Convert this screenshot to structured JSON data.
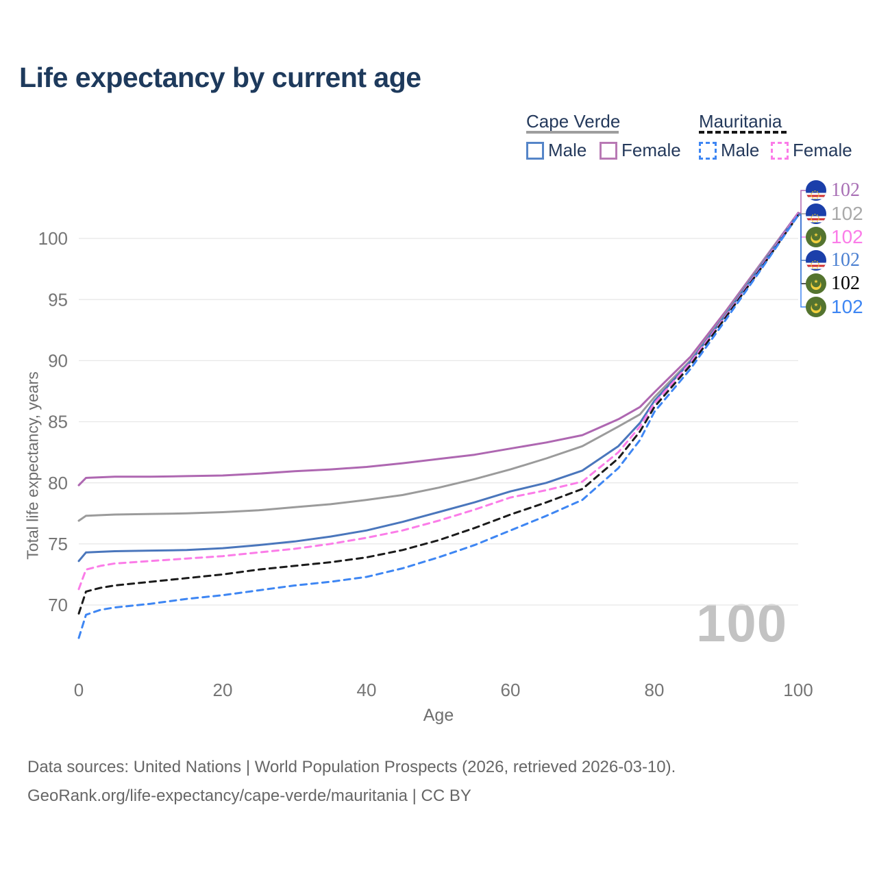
{
  "title": "Life expectancy by current age",
  "watermark": "100",
  "legend": {
    "groups": [
      {
        "label": "Cape Verde",
        "line_style": "solid",
        "line_color": "#9e9e9e",
        "items": [
          {
            "label": "Male",
            "box_color": "#5585c8",
            "dashed": false
          },
          {
            "label": "Female",
            "box_color": "#b879b4",
            "dashed": false
          }
        ]
      },
      {
        "label": "Mauritania",
        "line_style": "dashed",
        "line_color": "#161616",
        "items": [
          {
            "label": "Male",
            "box_color": "#3e86f3",
            "dashed": true
          },
          {
            "label": "Female",
            "box_color": "#fb7ce8",
            "dashed": true
          }
        ]
      }
    ]
  },
  "chart_data": {
    "type": "line",
    "title": "Life expectancy by current age",
    "xlabel": "Age",
    "ylabel": "Total life expectancy, years",
    "xlim": [
      0,
      100
    ],
    "ylim": [
      66.5,
      103
    ],
    "xticks": [
      0,
      20,
      40,
      60,
      80,
      100
    ],
    "yticks": [
      70,
      75,
      80,
      85,
      90,
      95,
      100
    ],
    "grid": "horizontal",
    "legend_position": "top-right",
    "series": [
      {
        "id": "cv_female",
        "label": "Cape Verde — Female",
        "country": "Cape Verde",
        "sex": "Female",
        "color": "#ae67b1",
        "dash": false,
        "points": [
          [
            0,
            79.8
          ],
          [
            1,
            80.4
          ],
          [
            3,
            80.45
          ],
          [
            5,
            80.5
          ],
          [
            10,
            80.5
          ],
          [
            15,
            80.55
          ],
          [
            20,
            80.6
          ],
          [
            25,
            80.75
          ],
          [
            30,
            80.95
          ],
          [
            35,
            81.1
          ],
          [
            40,
            81.3
          ],
          [
            45,
            81.6
          ],
          [
            50,
            81.95
          ],
          [
            55,
            82.3
          ],
          [
            60,
            82.8
          ],
          [
            65,
            83.3
          ],
          [
            70,
            83.9
          ],
          [
            75,
            85.2
          ],
          [
            78,
            86.2
          ],
          [
            80,
            87.4
          ],
          [
            85,
            90.3
          ],
          [
            90,
            94.1
          ],
          [
            95,
            98.1
          ],
          [
            100,
            102.1
          ]
        ]
      },
      {
        "id": "cv_both",
        "label": "Cape Verde — Both sexes",
        "country": "Cape Verde",
        "sex": "Both",
        "color": "#9b9b9b",
        "dash": false,
        "points": [
          [
            0,
            76.9
          ],
          [
            1,
            77.3
          ],
          [
            3,
            77.35
          ],
          [
            5,
            77.4
          ],
          [
            10,
            77.45
          ],
          [
            15,
            77.5
          ],
          [
            20,
            77.6
          ],
          [
            25,
            77.75
          ],
          [
            30,
            78.0
          ],
          [
            35,
            78.25
          ],
          [
            40,
            78.6
          ],
          [
            45,
            79.0
          ],
          [
            50,
            79.6
          ],
          [
            55,
            80.3
          ],
          [
            60,
            81.1
          ],
          [
            65,
            82.0
          ],
          [
            70,
            83.0
          ],
          [
            75,
            84.6
          ],
          [
            78,
            85.6
          ],
          [
            80,
            87.0
          ],
          [
            85,
            90.0
          ],
          [
            90,
            93.9
          ],
          [
            95,
            98.0
          ],
          [
            100,
            102.0
          ]
        ]
      },
      {
        "id": "cv_male",
        "label": "Cape Verde — Male",
        "country": "Cape Verde",
        "sex": "Male",
        "color": "#4a76bc",
        "dash": false,
        "points": [
          [
            0,
            73.6
          ],
          [
            1,
            74.3
          ],
          [
            3,
            74.35
          ],
          [
            5,
            74.4
          ],
          [
            10,
            74.45
          ],
          [
            15,
            74.5
          ],
          [
            20,
            74.65
          ],
          [
            25,
            74.9
          ],
          [
            30,
            75.2
          ],
          [
            35,
            75.6
          ],
          [
            40,
            76.1
          ],
          [
            45,
            76.8
          ],
          [
            50,
            77.6
          ],
          [
            55,
            78.4
          ],
          [
            60,
            79.3
          ],
          [
            65,
            80.0
          ],
          [
            70,
            81.0
          ],
          [
            75,
            83.0
          ],
          [
            78,
            84.9
          ],
          [
            80,
            86.7
          ],
          [
            85,
            89.9
          ],
          [
            90,
            93.8
          ],
          [
            95,
            97.9
          ],
          [
            100,
            102.0
          ]
        ]
      },
      {
        "id": "mr_female",
        "label": "Mauritania — Female",
        "country": "Mauritania",
        "sex": "Female",
        "color": "#fb7ce8",
        "dash": true,
        "points": [
          [
            0,
            71.3
          ],
          [
            1,
            72.9
          ],
          [
            3,
            73.2
          ],
          [
            5,
            73.4
          ],
          [
            10,
            73.6
          ],
          [
            15,
            73.8
          ],
          [
            20,
            74.0
          ],
          [
            25,
            74.3
          ],
          [
            30,
            74.6
          ],
          [
            35,
            75.0
          ],
          [
            40,
            75.5
          ],
          [
            45,
            76.1
          ],
          [
            50,
            76.9
          ],
          [
            55,
            77.8
          ],
          [
            60,
            78.8
          ],
          [
            65,
            79.4
          ],
          [
            70,
            80.1
          ],
          [
            75,
            82.5
          ],
          [
            78,
            84.6
          ],
          [
            80,
            86.5
          ],
          [
            85,
            89.8
          ],
          [
            90,
            93.7
          ],
          [
            95,
            97.8
          ],
          [
            100,
            102.0
          ]
        ]
      },
      {
        "id": "mr_both",
        "label": "Mauritania — Both sexes",
        "country": "Mauritania",
        "sex": "Both",
        "color": "#1b1b1b",
        "dash": true,
        "points": [
          [
            0,
            69.3
          ],
          [
            1,
            71.1
          ],
          [
            3,
            71.4
          ],
          [
            5,
            71.6
          ],
          [
            10,
            71.9
          ],
          [
            15,
            72.2
          ],
          [
            20,
            72.5
          ],
          [
            25,
            72.9
          ],
          [
            30,
            73.2
          ],
          [
            35,
            73.5
          ],
          [
            40,
            73.9
          ],
          [
            45,
            74.5
          ],
          [
            50,
            75.3
          ],
          [
            55,
            76.3
          ],
          [
            60,
            77.4
          ],
          [
            65,
            78.4
          ],
          [
            70,
            79.5
          ],
          [
            75,
            82.0
          ],
          [
            78,
            84.2
          ],
          [
            80,
            86.2
          ],
          [
            85,
            89.6
          ],
          [
            90,
            93.6
          ],
          [
            95,
            97.7
          ],
          [
            100,
            101.9
          ]
        ]
      },
      {
        "id": "mr_male",
        "label": "Mauritania — Male",
        "country": "Mauritania",
        "sex": "Male",
        "color": "#3e86f3",
        "dash": true,
        "points": [
          [
            0,
            67.3
          ],
          [
            1,
            69.2
          ],
          [
            3,
            69.6
          ],
          [
            5,
            69.8
          ],
          [
            10,
            70.1
          ],
          [
            15,
            70.5
          ],
          [
            20,
            70.8
          ],
          [
            25,
            71.2
          ],
          [
            30,
            71.6
          ],
          [
            35,
            71.9
          ],
          [
            40,
            72.3
          ],
          [
            45,
            73.0
          ],
          [
            50,
            73.9
          ],
          [
            55,
            74.9
          ],
          [
            60,
            76.1
          ],
          [
            65,
            77.3
          ],
          [
            70,
            78.6
          ],
          [
            75,
            81.2
          ],
          [
            78,
            83.5
          ],
          [
            80,
            85.8
          ],
          [
            85,
            89.3
          ],
          [
            90,
            93.4
          ],
          [
            95,
            97.6
          ],
          [
            100,
            101.9
          ]
        ]
      }
    ]
  },
  "end_labels": [
    {
      "series": "cv_female",
      "flag": "cape-verde",
      "value": "102",
      "color": "#a86fb5",
      "serif": true
    },
    {
      "series": "cv_both",
      "flag": "cape-verde",
      "value": "102",
      "color": "#a9a9a9",
      "serif": false
    },
    {
      "series": "mr_female",
      "flag": "mauritania",
      "value": "102",
      "color": "#fb7ce8",
      "serif": false
    },
    {
      "series": "cv_male",
      "flag": "cape-verde",
      "value": "102",
      "color": "#4a7fd1",
      "serif": true
    },
    {
      "series": "mr_both",
      "flag": "mauritania",
      "value": "102",
      "color": "#000000",
      "serif": true
    },
    {
      "series": "mr_male",
      "flag": "mauritania",
      "value": "102",
      "color": "#3e86f3",
      "serif": false
    }
  ],
  "footer": {
    "line1": "Data sources: United Nations | World Population Prospects (2026, retrieved 2026-03-10).",
    "line2": "GeoRank.org/life-expectancy/cape-verde/mauritania | CC BY"
  }
}
